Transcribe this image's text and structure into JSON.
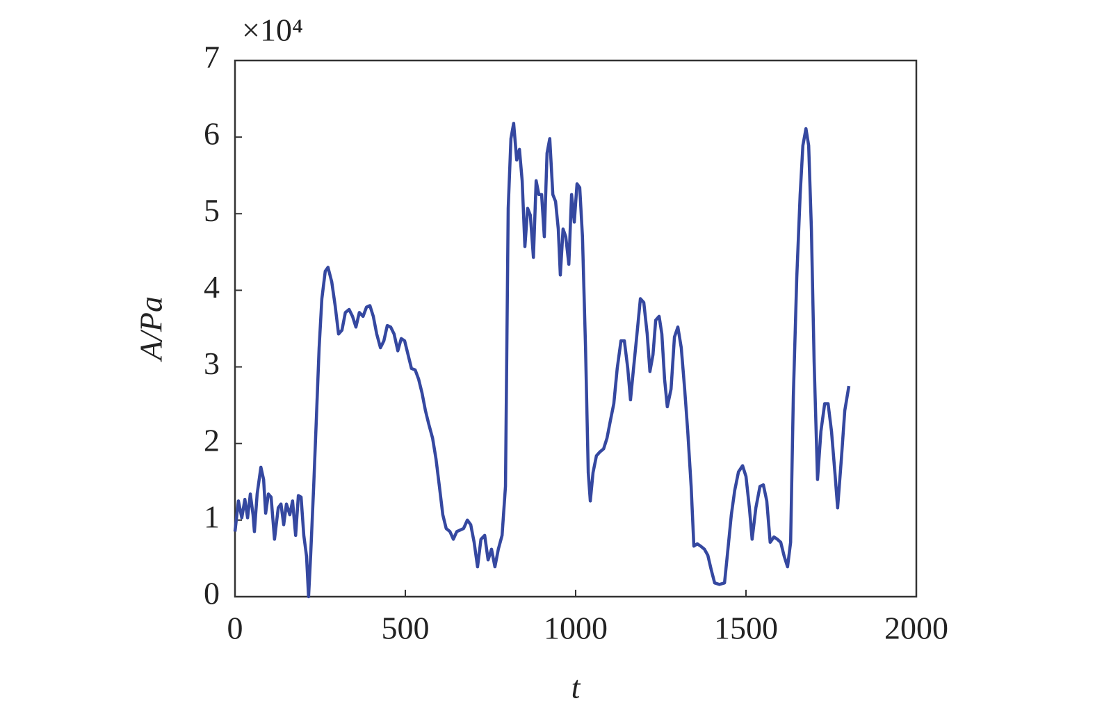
{
  "chart_data": {
    "type": "line",
    "ylabel": "A/Pa",
    "xlabel": "t",
    "multiplier": "×10⁴",
    "xlim": [
      0,
      2000
    ],
    "xticks": [
      0,
      500,
      1000,
      1500,
      2000
    ],
    "ylim": [
      0,
      7
    ],
    "yticks": [
      0,
      1,
      2,
      3,
      4,
      5,
      6,
      7
    ],
    "series": [
      {
        "color": "#3548a0",
        "x": [
          0,
          10,
          20,
          29,
          37,
          45,
          53,
          57,
          65,
          76,
          84,
          90,
          98,
          106,
          116,
          127,
          135,
          143,
          151,
          161,
          169,
          178,
          186,
          194,
          202,
          210,
          216,
          222,
          231,
          239,
          247,
          255,
          265,
          273,
          284,
          294,
          304,
          314,
          324,
          335,
          345,
          355,
          365,
          376,
          386,
          396,
          406,
          416,
          427,
          437,
          447,
          457,
          467,
          478,
          488,
          498,
          508,
          518,
          529,
          539,
          549,
          559,
          569,
          580,
          590,
          600,
          610,
          620,
          631,
          641,
          651,
          661,
          671,
          682,
          692,
          702,
          712,
          722,
          733,
          743,
          753,
          763,
          773,
          784,
          794,
          802,
          810,
          818,
          827,
          835,
          843,
          851,
          859,
          867,
          876,
          884,
          892,
          900,
          908,
          916,
          924,
          933,
          941,
          949,
          955,
          963,
          971,
          980,
          988,
          996,
          1004,
          1012,
          1020,
          1029,
          1037,
          1043,
          1051,
          1061,
          1071,
          1082,
          1092,
          1102,
          1112,
          1122,
          1133,
          1143,
          1153,
          1161,
          1169,
          1180,
          1190,
          1200,
          1210,
          1218,
          1227,
          1235,
          1245,
          1253,
          1261,
          1269,
          1280,
          1290,
          1300,
          1310,
          1320,
          1329,
          1339,
          1347,
          1357,
          1367,
          1378,
          1388,
          1398,
          1408,
          1422,
          1437,
          1447,
          1457,
          1467,
          1478,
          1490,
          1500,
          1510,
          1518,
          1529,
          1541,
          1551,
          1561,
          1571,
          1582,
          1592,
          1602,
          1612,
          1622,
          1631,
          1639,
          1649,
          1659,
          1667,
          1676,
          1684,
          1692,
          1700,
          1710,
          1720,
          1731,
          1741,
          1751,
          1761,
          1769,
          1780,
          1790,
          1802
        ],
        "values": [
          0.85,
          1.25,
          1.03,
          1.27,
          1.03,
          1.34,
          1.07,
          0.85,
          1.34,
          1.69,
          1.53,
          1.09,
          1.34,
          1.3,
          0.75,
          1.16,
          1.21,
          0.94,
          1.21,
          1.07,
          1.25,
          0.8,
          1.32,
          1.3,
          0.8,
          0.53,
          0,
          0.53,
          1.44,
          2.34,
          3.25,
          3.89,
          4.25,
          4.3,
          4.11,
          3.8,
          3.43,
          3.48,
          3.71,
          3.75,
          3.66,
          3.52,
          3.71,
          3.66,
          3.78,
          3.8,
          3.66,
          3.43,
          3.25,
          3.34,
          3.54,
          3.52,
          3.43,
          3.21,
          3.37,
          3.34,
          3.16,
          2.98,
          2.96,
          2.84,
          2.66,
          2.43,
          2.25,
          2.07,
          1.8,
          1.44,
          1.07,
          0.89,
          0.85,
          0.75,
          0.85,
          0.87,
          0.89,
          1.0,
          0.94,
          0.71,
          0.39,
          0.75,
          0.8,
          0.48,
          0.62,
          0.39,
          0.62,
          0.8,
          1.44,
          5.07,
          5.98,
          6.18,
          5.7,
          5.84,
          5.43,
          4.57,
          5.07,
          4.98,
          4.43,
          5.43,
          5.25,
          5.25,
          4.7,
          5.79,
          5.98,
          5.25,
          5.16,
          4.8,
          4.2,
          4.8,
          4.7,
          4.34,
          5.25,
          4.89,
          5.39,
          5.34,
          4.7,
          3.25,
          1.62,
          1.25,
          1.62,
          1.84,
          1.89,
          1.93,
          2.07,
          2.3,
          2.52,
          2.98,
          3.34,
          3.34,
          2.98,
          2.57,
          2.94,
          3.43,
          3.89,
          3.84,
          3.43,
          2.94,
          3.16,
          3.61,
          3.66,
          3.43,
          2.84,
          2.48,
          2.71,
          3.39,
          3.52,
          3.25,
          2.71,
          2.16,
          1.44,
          0.66,
          0.69,
          0.66,
          0.62,
          0.54,
          0.35,
          0.18,
          0.16,
          0.18,
          0.62,
          1.07,
          1.39,
          1.63,
          1.71,
          1.57,
          1.16,
          0.75,
          1.16,
          1.44,
          1.46,
          1.25,
          0.71,
          0.78,
          0.75,
          0.71,
          0.53,
          0.39,
          0.71,
          2.62,
          4.16,
          5.25,
          5.89,
          6.11,
          5.89,
          4.8,
          3.07,
          1.53,
          2.16,
          2.52,
          2.52,
          2.16,
          1.62,
          1.16,
          1.8,
          2.43,
          2.75
        ]
      }
    ]
  }
}
